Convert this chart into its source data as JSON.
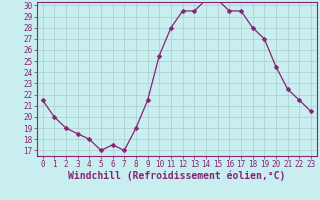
{
  "x": [
    0,
    1,
    2,
    3,
    4,
    5,
    6,
    7,
    8,
    9,
    10,
    11,
    12,
    13,
    14,
    15,
    16,
    17,
    18,
    19,
    20,
    21,
    22,
    23
  ],
  "y": [
    21.5,
    20.0,
    19.0,
    18.5,
    18.0,
    17.0,
    17.5,
    17.0,
    19.0,
    21.5,
    25.5,
    28.0,
    29.5,
    29.5,
    30.5,
    30.5,
    29.5,
    29.5,
    28.0,
    27.0,
    24.5,
    22.5,
    21.5,
    20.5
  ],
  "line_color": "#882277",
  "marker": "D",
  "marker_size": 2.5,
  "bg_color": "#c8eef0",
  "grid_color": "#aacccc",
  "xlabel": "Windchill (Refroidissement éolien,°C)",
  "xlim": [
    -0.5,
    23.5
  ],
  "ylim": [
    16.5,
    30.3
  ],
  "yticks": [
    17,
    18,
    19,
    20,
    21,
    22,
    23,
    24,
    25,
    26,
    27,
    28,
    29,
    30
  ],
  "xticks": [
    0,
    1,
    2,
    3,
    4,
    5,
    6,
    7,
    8,
    9,
    10,
    11,
    12,
    13,
    14,
    15,
    16,
    17,
    18,
    19,
    20,
    21,
    22,
    23
  ],
  "tick_fontsize": 5.5,
  "xlabel_fontsize": 7.0,
  "label_color": "#882277",
  "spine_color": "#882277",
  "grid_linewidth": 0.5
}
